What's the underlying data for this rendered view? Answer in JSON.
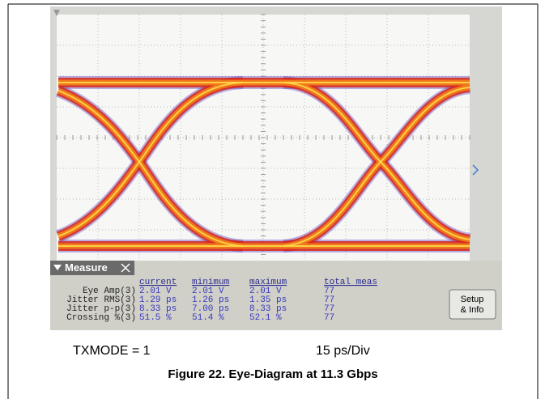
{
  "scope": {
    "measure_tab": "Measure",
    "columns": [
      "current",
      "minimum",
      "maximum",
      "total meas"
    ],
    "rows": [
      {
        "label": "Eye Amp(3)",
        "cells": [
          "2.01 V",
          "2.01 V",
          "2.01 V",
          "77"
        ]
      },
      {
        "label": "Jitter RMS(3)",
        "cells": [
          "1.29 ps",
          "1.26 ps",
          "1.35 ps",
          "77"
        ]
      },
      {
        "label": "Jitter p-p(3)",
        "cells": [
          "8.33 ps",
          "7.00 ps",
          "8.33 ps",
          "77"
        ]
      },
      {
        "label": "Crossing %(3)",
        "cells": [
          "51.5 %",
          "51.4 %",
          "52.1 %",
          "77"
        ]
      }
    ],
    "button": [
      "Setup",
      "& Info"
    ]
  },
  "labels": {
    "left": "TXMODE = 1",
    "right": "15 ps/Div"
  },
  "caption": "Figure 22. Eye-Diagram at 11.3 Gbps"
}
